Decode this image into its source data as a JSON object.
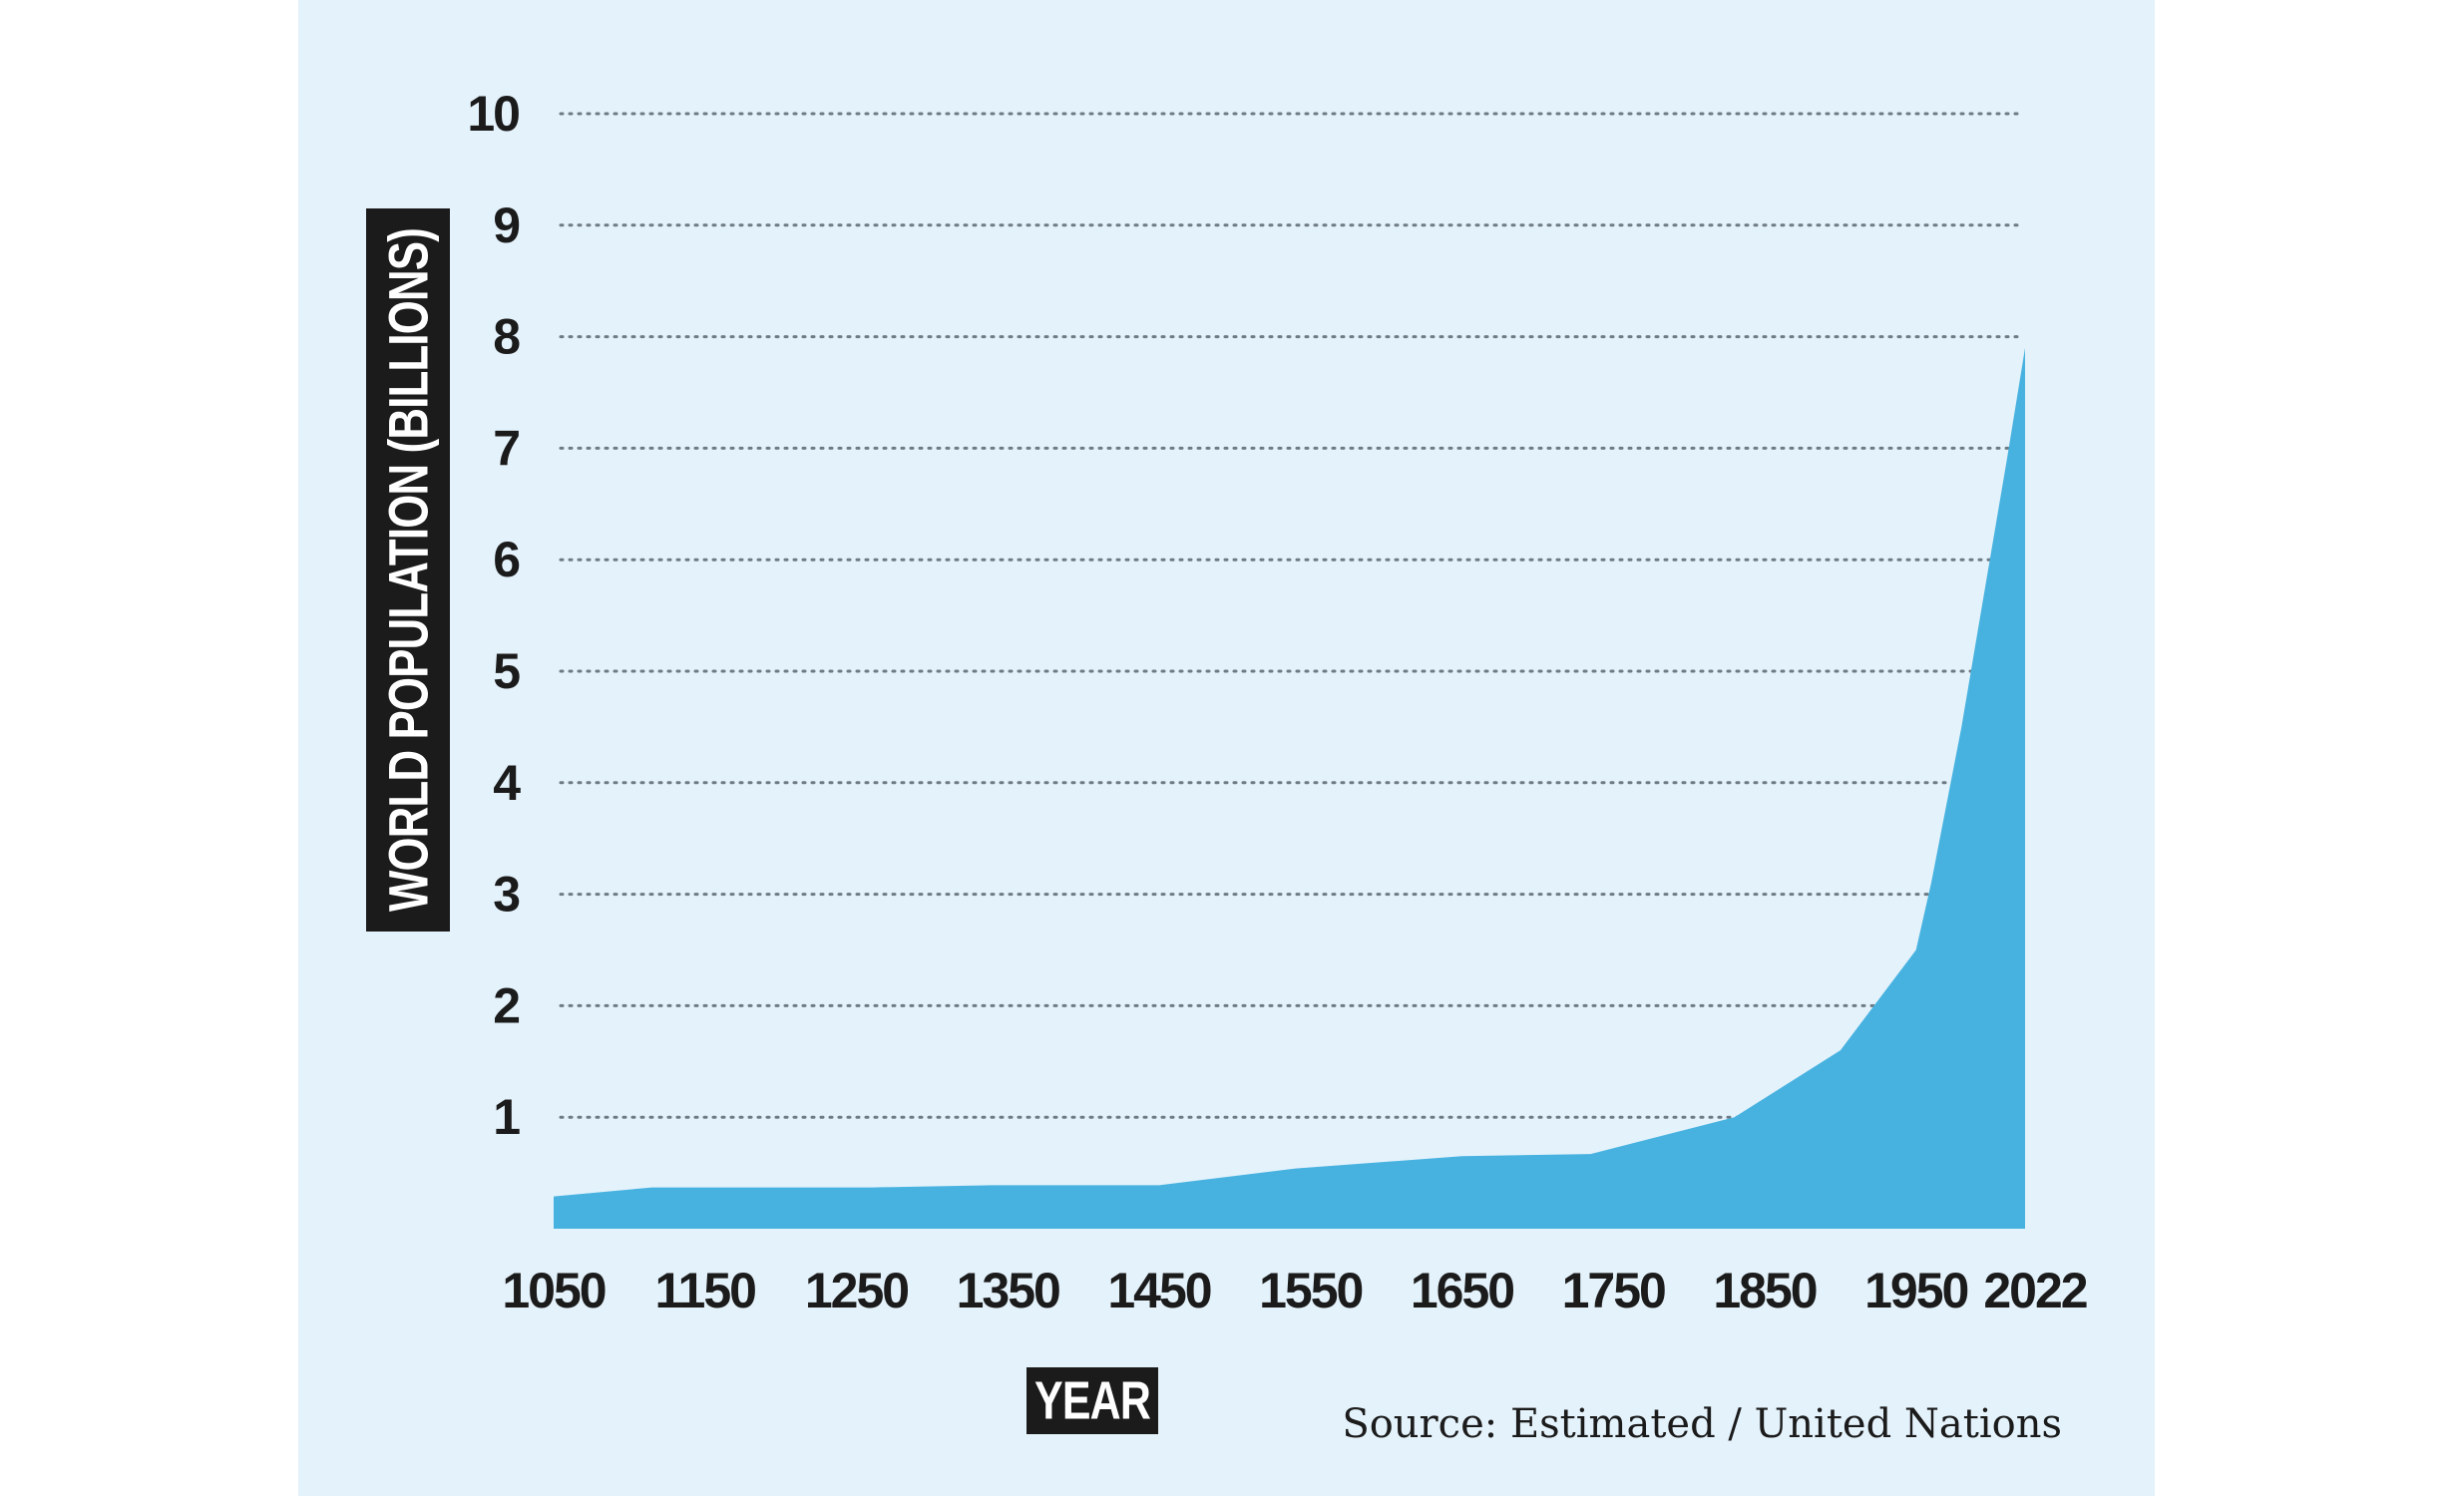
{
  "colors": {
    "background": "#e4f2fb",
    "area_fill": "#47b2e0",
    "text": "#1b1b1b",
    "gridline": "#6e7b84",
    "label_box": "#1b1b1b"
  },
  "chart_data": {
    "type": "area",
    "title": "",
    "xlabel": "YEAR",
    "ylabel": "WORLD POPULATION (BILLIONS)",
    "source": "Source: Estimated / United Nations",
    "x_ticks": [
      "1050",
      "1150",
      "1250",
      "1350",
      "1450",
      "1550",
      "1650",
      "1750",
      "1850",
      "1950",
      "2022"
    ],
    "y_ticks": [
      "1",
      "2",
      "3",
      "4",
      "5",
      "6",
      "7",
      "8",
      "9",
      "10"
    ],
    "xlim": [
      1050,
      2022
    ],
    "ylim": [
      0,
      10
    ],
    "grid": "horizontal-dotted",
    "series": [
      {
        "x": [
          1050,
          1115,
          1260,
          1340,
          1450,
          1540,
          1650,
          1735,
          1830,
          1900,
          1950,
          1960,
          1970,
          1980,
          1990,
          2000,
          2010,
          2022
        ],
        "values": [
          0.29,
          0.37,
          0.37,
          0.39,
          0.39,
          0.54,
          0.65,
          0.67,
          1.0,
          1.6,
          2.5,
          3.1,
          3.8,
          4.5,
          5.3,
          6.1,
          6.9,
          7.9
        ]
      }
    ]
  }
}
